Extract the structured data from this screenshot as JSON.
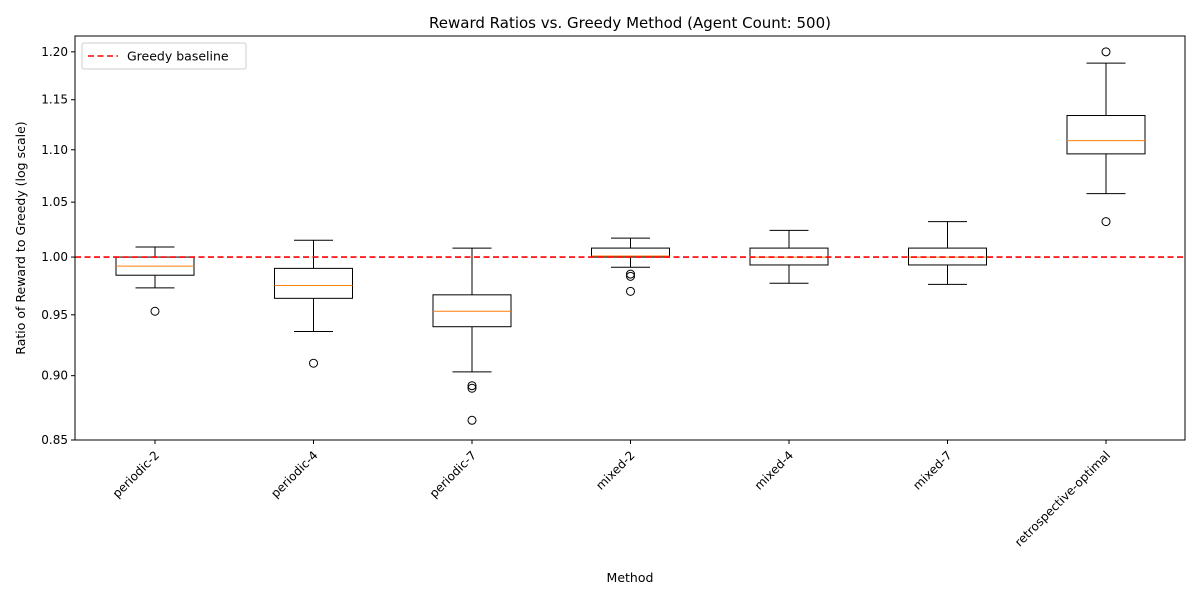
{
  "chart_data": {
    "type": "box",
    "title": "Reward Ratios vs. Greedy Method (Agent Count: 500)",
    "xlabel": "Method",
    "ylabel": "Ratio of Reward to Greedy (log scale)",
    "y_scale": "log",
    "ylim": [
      0.85,
      1.217
    ],
    "yticks": [
      "0.85",
      "0.90",
      "0.95",
      "1.00",
      "1.05",
      "1.10",
      "1.15",
      "1.20"
    ],
    "ytick_values": [
      0.85,
      0.9,
      0.95,
      1.0,
      1.05,
      1.1,
      1.15,
      1.2
    ],
    "categories": [
      "periodic-2",
      "periodic-4",
      "periodic-7",
      "mixed-2",
      "mixed-4",
      "mixed-7",
      "retrospective-optimal"
    ],
    "boxes": [
      {
        "whisker_low": 0.973,
        "q1": 0.984,
        "median": 0.992,
        "q3": 1.0,
        "whisker_high": 1.009,
        "outliers": [
          0.953
        ]
      },
      {
        "whisker_low": 0.936,
        "q1": 0.964,
        "median": 0.975,
        "q3": 0.99,
        "whisker_high": 1.015,
        "outliers": [
          0.91
        ]
      },
      {
        "whisker_low": 0.903,
        "q1": 0.94,
        "median": 0.953,
        "q3": 0.967,
        "whisker_high": 1.008,
        "outliers": [
          0.892,
          0.89,
          0.865
        ]
      },
      {
        "whisker_low": 0.991,
        "q1": 1.0,
        "median": 1.001,
        "q3": 1.008,
        "whisker_high": 1.017,
        "outliers": [
          0.985,
          0.983,
          0.97
        ]
      },
      {
        "whisker_low": 0.977,
        "q1": 0.993,
        "median": 1.0,
        "q3": 1.008,
        "whisker_high": 1.024,
        "outliers": []
      },
      {
        "whisker_low": 0.976,
        "q1": 0.993,
        "median": 1.0,
        "q3": 1.008,
        "whisker_high": 1.032,
        "outliers": []
      },
      {
        "whisker_low": 1.058,
        "q1": 1.096,
        "median": 1.109,
        "q3": 1.134,
        "whisker_high": 1.188,
        "outliers": [
          1.2,
          1.032
        ]
      }
    ],
    "baseline": {
      "name": "Greedy baseline",
      "value": 1.0,
      "color": "#ff0000"
    },
    "legend_position": "top-left",
    "grid": false,
    "colors": {
      "box": "#000000",
      "median": "#ff7f0e",
      "baseline": "#ff0000"
    }
  }
}
